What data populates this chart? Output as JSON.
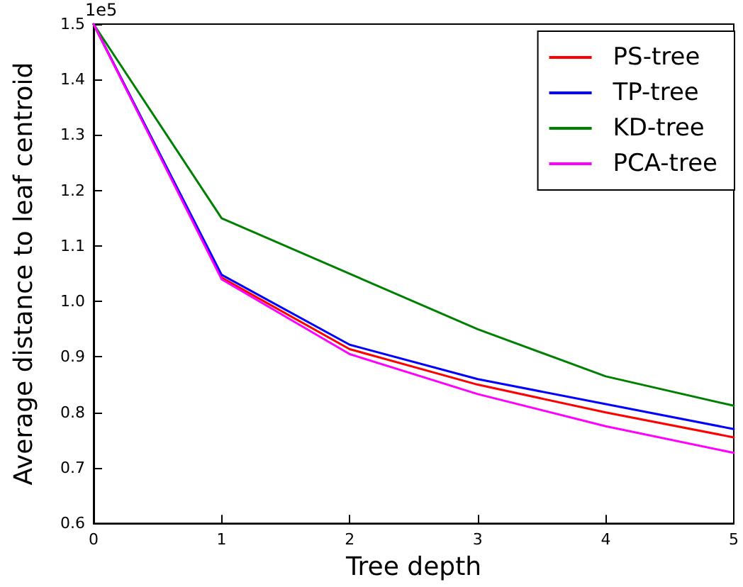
{
  "chart_data": {
    "type": "line",
    "xlabel": "Tree depth",
    "ylabel": "Average distance to leaf centroid",
    "annotations": [
      "1e5"
    ],
    "x": [
      0,
      1,
      2,
      3,
      4,
      5
    ],
    "xlim": [
      0,
      5
    ],
    "xticks": [
      0,
      1,
      2,
      3,
      4,
      5
    ],
    "ylim": [
      0.6,
      1.5
    ],
    "yticks": [
      0.6,
      0.7,
      0.8,
      0.9,
      {
        "value": 1,
        "label": "1.0"
      },
      1.1,
      1.2,
      1.3,
      1.4,
      1.5
    ],
    "grid": false,
    "legend": "top right",
    "marker": "none",
    "line_style": "solid",
    "series": [
      {
        "name": "PS-tree",
        "color": "#ff0000",
        "values": [
          1.5,
          1.043,
          0.914,
          0.85,
          0.8,
          0.755
        ]
      },
      {
        "name": "TP-tree",
        "color": "#0000ff",
        "values": [
          1.5,
          1.048,
          0.922,
          0.86,
          0.815,
          0.77
        ]
      },
      {
        "name": "KD-tree",
        "color": "#008000",
        "values": [
          1.5,
          1.15,
          1.05,
          0.95,
          0.865,
          0.812
        ]
      },
      {
        "name": "PCA-tree",
        "color": "#ff00ff",
        "values": [
          1.5,
          1.04,
          0.905,
          0.833,
          0.775,
          0.727
        ]
      }
    ]
  }
}
